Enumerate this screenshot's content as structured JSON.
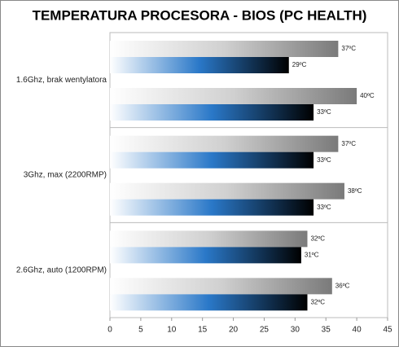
{
  "chart_data": {
    "type": "hbar",
    "title": "TEMPERATURA PROCESORA - BIOS (PC HEALTH)",
    "categories": [
      "1.6Ghz, brak wentylatora",
      "3Ghz, max (2200RMP)",
      "2.6Ghz, auto (1200RPM)"
    ],
    "series": [
      {
        "gradient": [
          "#ffffff",
          "#d0d0d0",
          "#7a7a7a"
        ],
        "values": [
          37,
          37,
          32
        ],
        "value_labels": [
          "37ºC",
          "37ºC",
          "32ºC"
        ]
      },
      {
        "gradient": [
          "#ffffff",
          "#2a78c8",
          "#000000"
        ],
        "values": [
          29,
          33,
          31
        ],
        "value_labels": [
          "29ºC",
          "33ºC",
          "31ºC"
        ]
      },
      {
        "gradient": [
          "#ffffff",
          "#d0d0d0",
          "#7a7a7a"
        ],
        "values": [
          40,
          38,
          36
        ],
        "value_labels": [
          "40ºC",
          "38ºC",
          "36ºC"
        ]
      },
      {
        "gradient": [
          "#ffffff",
          "#2a78c8",
          "#000000"
        ],
        "values": [
          33,
          33,
          32
        ],
        "value_labels": [
          "33ºC",
          "33ºC",
          "32ºC"
        ]
      }
    ],
    "xlim": [
      0,
      45
    ],
    "xticks": [
      0,
      5,
      10,
      15,
      20,
      25,
      30,
      35,
      40,
      45
    ]
  }
}
